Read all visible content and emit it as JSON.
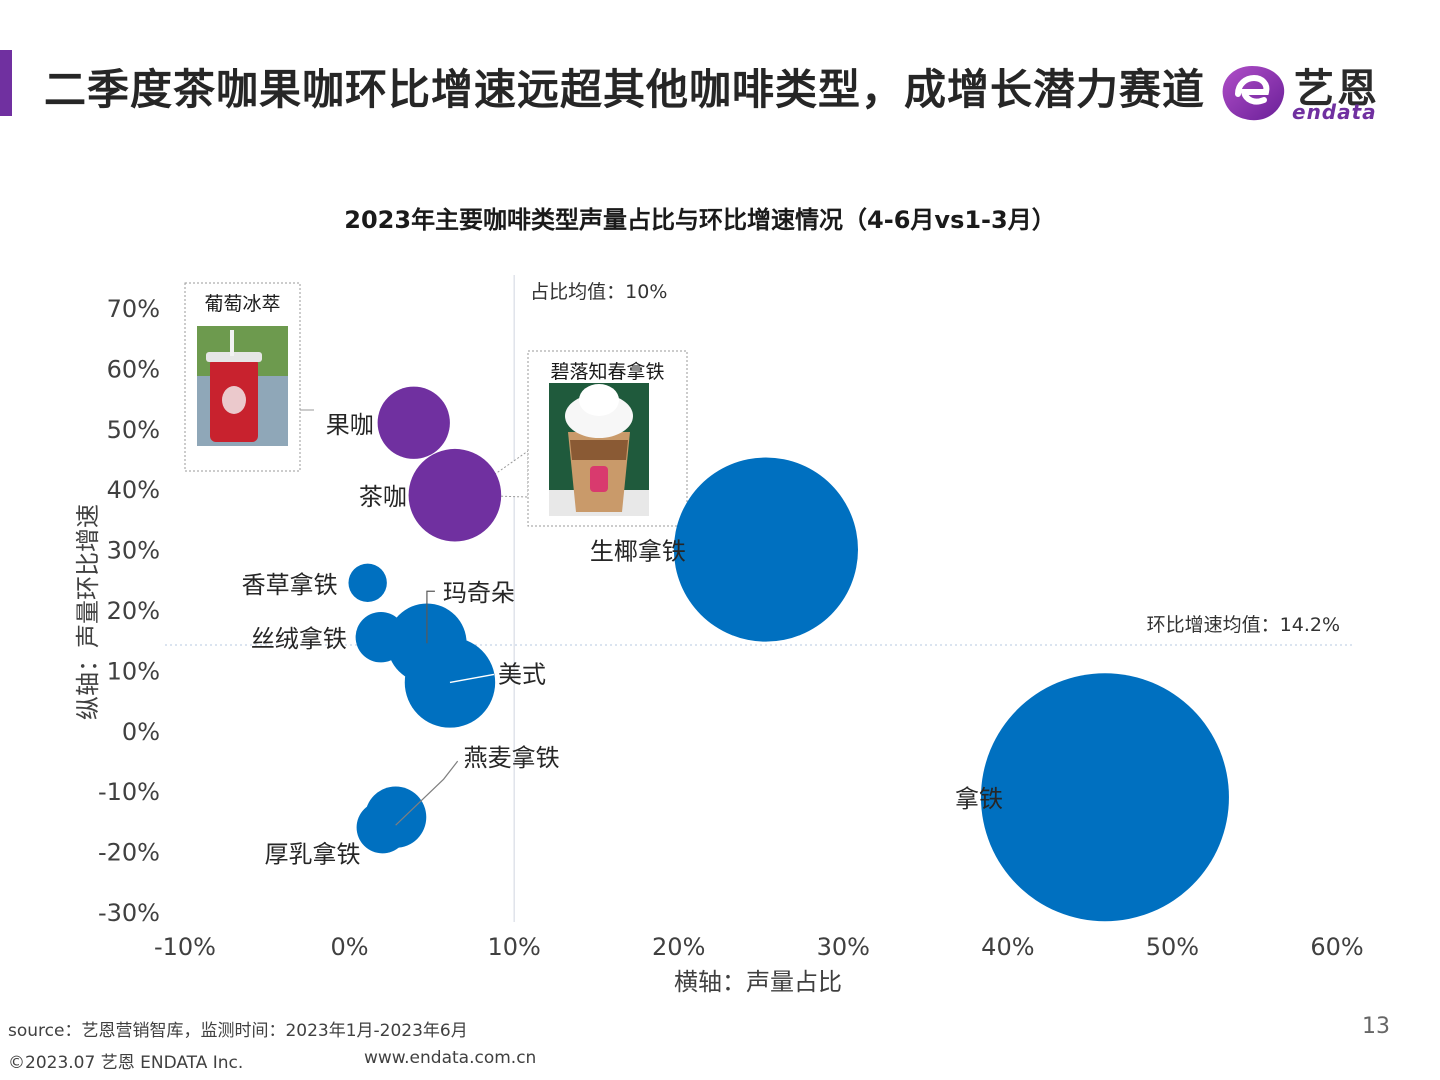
{
  "header": {
    "title": "二季度茶咖果咖环比增速远超其他咖啡类型，成增长潜力赛道",
    "logo_cn": "艺恩",
    "logo_en": "endata"
  },
  "colors": {
    "accent": "#7030a0",
    "blue": "#0070c0",
    "purple": "#7030a0"
  },
  "chart_data": {
    "type": "scatter",
    "title": "2023年主要咖啡类型声量占比与环比增速情况（4-6月vs1-3月）",
    "xlabel": "横轴：声量占比",
    "ylabel": "纵轴：声量环比增速",
    "xlim": [
      -0.1,
      0.6
    ],
    "ylim": [
      -0.3,
      0.7
    ],
    "xticks": [
      "-10%",
      "0%",
      "10%",
      "20%",
      "30%",
      "40%",
      "50%",
      "60%"
    ],
    "yticks": [
      "70%",
      "60%",
      "50%",
      "40%",
      "30%",
      "20%",
      "10%",
      "0%",
      "-10%",
      "-20%",
      "-30%"
    ],
    "points": [
      {
        "name": "果咖",
        "x": 0.039,
        "y": 0.51,
        "size": 0.039,
        "color": "#7030a0"
      },
      {
        "name": "茶咖",
        "x": 0.064,
        "y": 0.39,
        "size": 0.064,
        "color": "#7030a0"
      },
      {
        "name": "生椰拿铁",
        "x": 0.253,
        "y": 0.3,
        "size": 0.253,
        "color": "#0070c0"
      },
      {
        "name": "香草拿铁",
        "x": 0.011,
        "y": 0.245,
        "size": 0.011,
        "color": "#0070c0"
      },
      {
        "name": "玛奇朵",
        "x": 0.047,
        "y": 0.145,
        "size": 0.047,
        "color": "#0070c0"
      },
      {
        "name": "丝绒拿铁",
        "x": 0.019,
        "y": 0.155,
        "size": 0.019,
        "color": "#0070c0"
      },
      {
        "name": "美式",
        "x": 0.061,
        "y": 0.08,
        "size": 0.061,
        "color": "#0070c0"
      },
      {
        "name": "燕麦拿铁",
        "x": 0.028,
        "y": -0.143,
        "size": 0.028,
        "color": "#0070c0"
      },
      {
        "name": "厚乳拿铁",
        "x": 0.02,
        "y": -0.16,
        "size": 0.02,
        "color": "#0070c0"
      },
      {
        "name": "拿铁",
        "x": 0.459,
        "y": -0.11,
        "size": 0.459,
        "color": "#0070c0"
      }
    ],
    "reference_lines": {
      "x_mean": 0.1,
      "x_mean_label": "占比均值：10%",
      "y_mean": 0.142,
      "y_mean_label": "环比增速均值：14.2%"
    },
    "callouts": [
      {
        "label": "葡萄冰萃",
        "target": "果咖"
      },
      {
        "label": "碧落知春拿铁",
        "target": "茶咖"
      }
    ]
  },
  "footer": {
    "source": "source：艺恩营销智库，监测时间：2023年1月-2023年6月",
    "copyright": "©2023.07 艺恩 ENDATA Inc.",
    "url": "www.endata.com.cn",
    "page": "13"
  }
}
